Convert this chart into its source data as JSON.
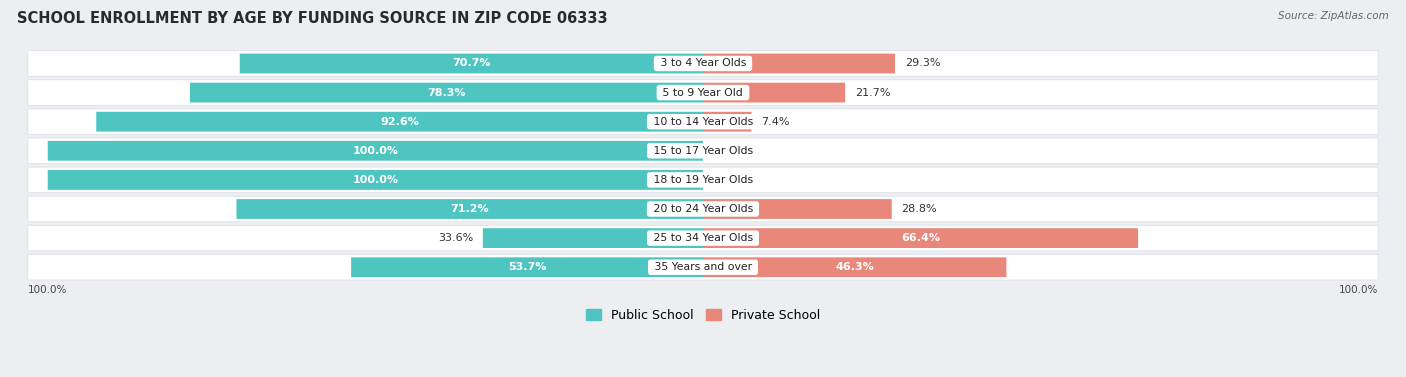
{
  "title": "SCHOOL ENROLLMENT BY AGE BY FUNDING SOURCE IN ZIP CODE 06333",
  "source": "Source: ZipAtlas.com",
  "categories": [
    "3 to 4 Year Olds",
    "5 to 9 Year Old",
    "10 to 14 Year Olds",
    "15 to 17 Year Olds",
    "18 to 19 Year Olds",
    "20 to 24 Year Olds",
    "25 to 34 Year Olds",
    "35 Years and over"
  ],
  "public_pct": [
    70.7,
    78.3,
    92.6,
    100.0,
    100.0,
    71.2,
    33.6,
    53.7
  ],
  "private_pct": [
    29.3,
    21.7,
    7.4,
    0.0,
    0.0,
    28.8,
    66.4,
    46.3
  ],
  "public_color": "#4EC5C1",
  "private_color": "#E8877A",
  "bg_color": "#ECEEF2",
  "bar_bg": "#FFFFFF",
  "title_fontsize": 10.5,
  "label_fontsize": 8,
  "bar_height": 0.68,
  "legend_labels": [
    "Public School",
    "Private School"
  ]
}
